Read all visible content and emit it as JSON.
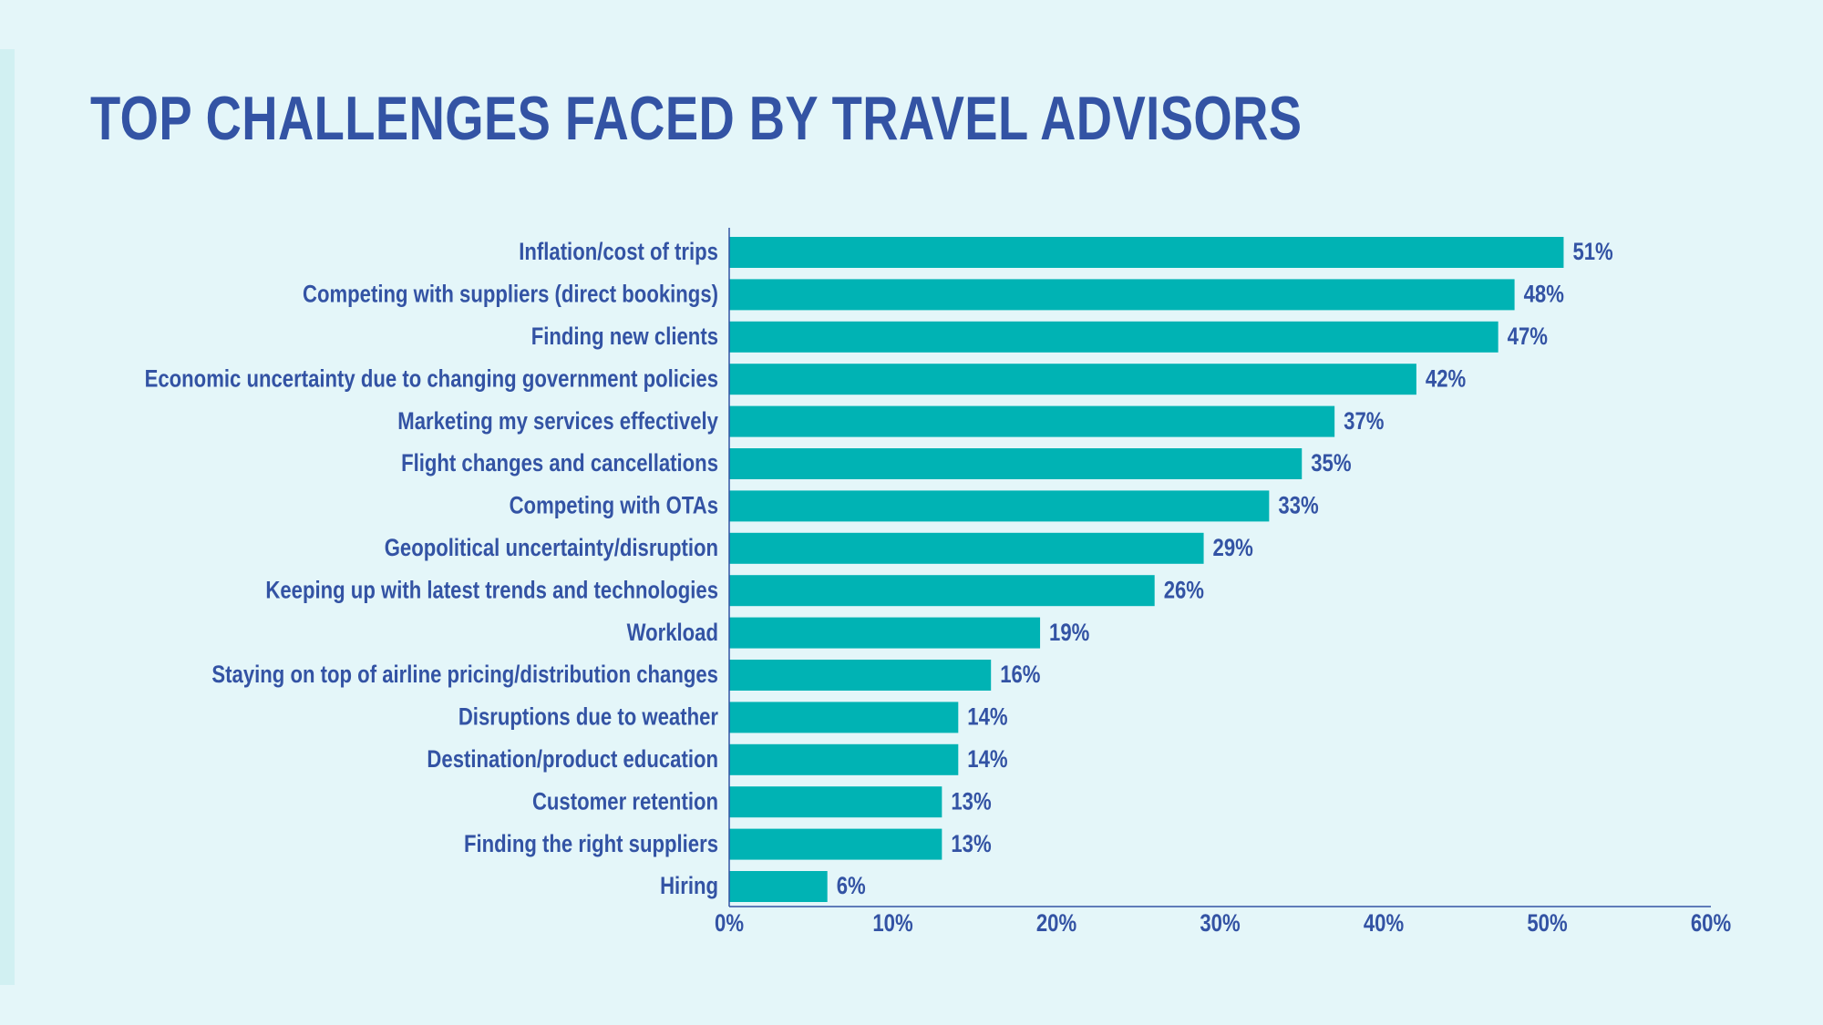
{
  "colors": {
    "background": "#e4f6f9",
    "accent_strip": "#d1f0f2",
    "bar": "#00b3b4",
    "text": "#3353a4"
  },
  "chart_data": {
    "type": "bar",
    "orientation": "horizontal",
    "title": "TOP CHALLENGES FACED BY TRAVEL ADVISORS",
    "categories": [
      "Inflation/cost of trips",
      "Competing with suppliers (direct bookings)",
      "Finding new clients",
      "Economic uncertainty due to changing government policies",
      "Marketing my services effectively",
      "Flight changes and cancellations",
      "Competing with OTAs",
      "Geopolitical uncertainty/disruption",
      "Keeping up with latest trends and technologies",
      "Workload",
      "Staying on top of airline pricing/distribution changes",
      "Disruptions due to weather",
      "Destination/product education",
      "Customer retention",
      "Finding the right suppliers",
      "Hiring"
    ],
    "values": [
      51,
      48,
      47,
      42,
      37,
      35,
      33,
      29,
      26,
      19,
      16,
      14,
      14,
      13,
      13,
      6
    ],
    "value_labels": [
      "51%",
      "48%",
      "47%",
      "42%",
      "37%",
      "35%",
      "33%",
      "29%",
      "26%",
      "19%",
      "16%",
      "14%",
      "14%",
      "13%",
      "13%",
      "6%"
    ],
    "xlim": [
      0,
      60
    ],
    "x_ticks": [
      0,
      10,
      20,
      30,
      40,
      50,
      60
    ],
    "x_tick_labels": [
      "0%",
      "10%",
      "20%",
      "30%",
      "40%",
      "50%",
      "60%"
    ],
    "grid": false,
    "legend": "none"
  }
}
